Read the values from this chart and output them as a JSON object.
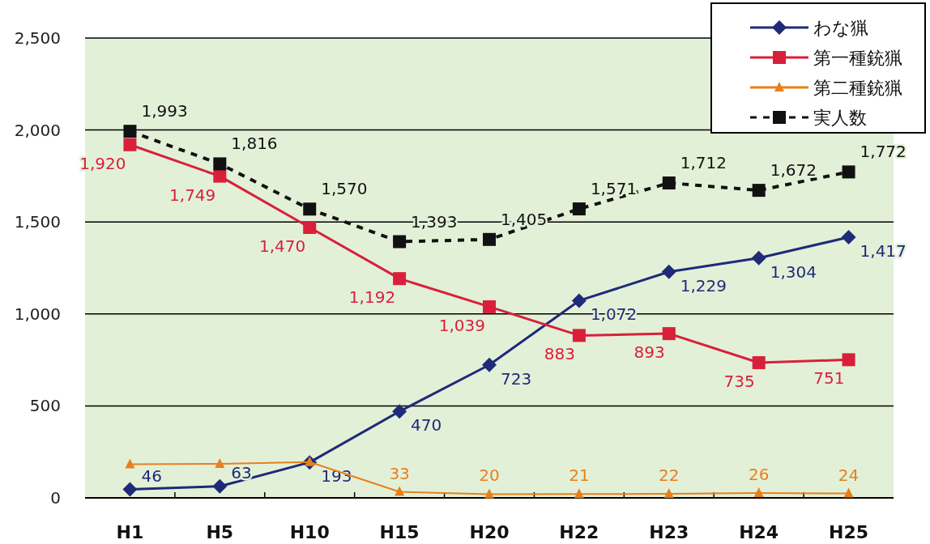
{
  "chart_data": {
    "type": "line",
    "categories": [
      "H1",
      "H5",
      "H10",
      "H15",
      "H20",
      "H22",
      "H23",
      "H24",
      "H25"
    ],
    "series": [
      {
        "name": "わな猟",
        "color": "#1f2a78",
        "marker": "diamond",
        "line_style": "solid",
        "values": [
          46,
          63,
          193,
          470,
          723,
          1072,
          1229,
          1304,
          1417
        ],
        "value_labels": [
          "46",
          "63",
          "193",
          "470",
          "723",
          "1,072",
          "1,229",
          "1,304",
          "1,417"
        ]
      },
      {
        "name": "第一種銃猟",
        "color": "#d8203a",
        "marker": "square",
        "line_style": "solid",
        "values": [
          1920,
          1749,
          1470,
          1192,
          1039,
          883,
          893,
          735,
          751
        ],
        "value_labels": [
          "1,920",
          "1,749",
          "1,470",
          "1,192",
          "1,039",
          "883",
          "893",
          "735",
          "751"
        ]
      },
      {
        "name": "第二種銃猟",
        "color": "#e8801a",
        "marker": "triangle",
        "line_style": "solid",
        "values": [
          183,
          185,
          195,
          33,
          20,
          21,
          22,
          26,
          24
        ],
        "value_labels": [
          null,
          null,
          null,
          "33",
          "20",
          "21",
          "22",
          "26",
          "24"
        ]
      },
      {
        "name": "実人数",
        "color": "#111111",
        "marker": "square",
        "line_style": "dashed",
        "values": [
          1993,
          1816,
          1570,
          1393,
          1405,
          1571,
          1712,
          1672,
          1772
        ],
        "value_labels": [
          "1,993",
          "1,816",
          "1,570",
          "1,393",
          "1,405",
          "1,571",
          "1,712",
          "1,672",
          "1,772"
        ]
      }
    ],
    "ylim": [
      0,
      2500
    ],
    "yticks": [
      0,
      {
        "value": 500,
        "label": "500"
      },
      {
        "value": 1000,
        "label": "1,000"
      },
      {
        "value": 1500,
        "label": "1,500"
      },
      {
        "value": 2000,
        "label": "2,000"
      },
      {
        "value": 2500,
        "label": "2,500"
      }
    ],
    "grid": "y",
    "legend": "top right"
  }
}
